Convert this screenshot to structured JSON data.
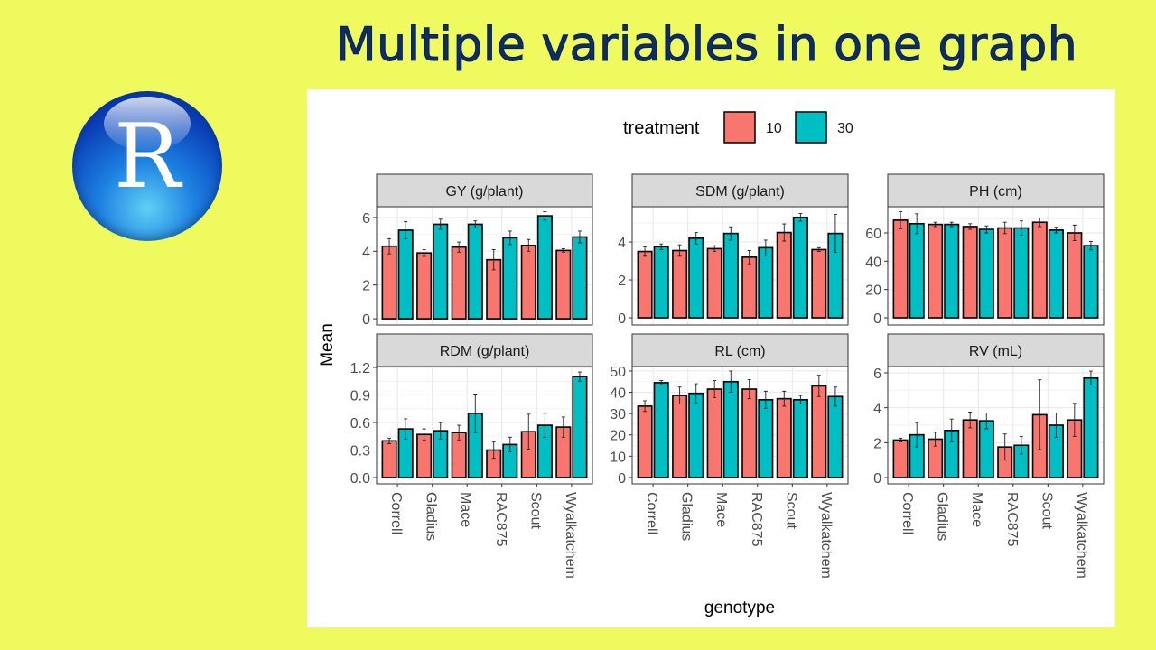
{
  "title": "Multiple variables in one graph",
  "logo": {
    "letter": "R"
  },
  "chart_data": {
    "type": "bar",
    "layout": "facet grid 2x3, free y scales",
    "categories": [
      "Correll",
      "Gladius",
      "Mace",
      "RAC875",
      "Scout",
      "Wyalkatchem"
    ],
    "xlabel": "genotype",
    "ylabel": "Mean",
    "legend": {
      "title": "treatment",
      "position": "top",
      "entries": [
        {
          "name": "10",
          "color": "#f8766d"
        },
        {
          "name": "30",
          "color": "#00bfc4"
        }
      ]
    },
    "grid": true,
    "error_bars": true,
    "panels": [
      {
        "label": "GY (g/plant)",
        "ylim": [
          -0.37,
          6.64
        ],
        "ticks": [
          "0",
          "2",
          "4",
          "6"
        ],
        "tick_values": [
          0,
          2,
          4,
          6
        ],
        "series": [
          {
            "name": "10",
            "values": [
              4.3,
              3.9,
              4.25,
              3.5,
              4.35,
              4.05
            ],
            "err": [
              0.45,
              0.2,
              0.3,
              0.6,
              0.35,
              0.1
            ]
          },
          {
            "name": "30",
            "values": [
              5.25,
              5.6,
              5.6,
              4.8,
              6.1,
              4.85
            ],
            "err": [
              0.5,
              0.3,
              0.2,
              0.4,
              0.25,
              0.35
            ]
          }
        ]
      },
      {
        "label": "SDM (g/plant)",
        "ylim": [
          -0.38,
          5.86
        ],
        "ticks": [
          "0",
          "2",
          "4"
        ],
        "tick_values": [
          0,
          2,
          4
        ],
        "series": [
          {
            "name": "10",
            "values": [
              3.5,
              3.55,
              3.65,
              3.2,
              4.5,
              3.6
            ],
            "err": [
              0.25,
              0.3,
              0.15,
              0.35,
              0.45,
              0.1
            ]
          },
          {
            "name": "30",
            "values": [
              3.75,
              4.2,
              4.45,
              3.7,
              5.3,
              4.45
            ],
            "err": [
              0.15,
              0.3,
              0.35,
              0.4,
              0.2,
              1.0
            ]
          }
        ]
      },
      {
        "label": "PH (cm)",
        "ylim": [
          -5.1,
          78.5
        ],
        "ticks": [
          "0",
          "20",
          "40",
          "60"
        ],
        "tick_values": [
          0,
          20,
          40,
          60
        ],
        "series": [
          {
            "name": "10",
            "values": [
              69,
              66,
              64.5,
              63.5,
              67.5,
              60
            ],
            "err": [
              6,
              1.5,
              2,
              4,
              3,
              5.5
            ]
          },
          {
            "name": "30",
            "values": [
              66.5,
              66,
              62.5,
              63.5,
              62,
              51
            ],
            "err": [
              7,
              1.5,
              2.5,
              5,
              2,
              3
            ]
          }
        ]
      },
      {
        "label": "RDM (g/plant)",
        "ylim": [
          -0.069,
          1.21
        ],
        "ticks": [
          "0.0",
          "0.3",
          "0.6",
          "0.9",
          "1.2"
        ],
        "tick_values": [
          0,
          0.3,
          0.6,
          0.9,
          1.2
        ],
        "series": [
          {
            "name": "10",
            "values": [
              0.4,
              0.47,
              0.49,
              0.3,
              0.5,
              0.55
            ],
            "err": [
              0.03,
              0.06,
              0.08,
              0.09,
              0.19,
              0.11
            ]
          },
          {
            "name": "30",
            "values": [
              0.53,
              0.51,
              0.7,
              0.36,
              0.57,
              1.1
            ],
            "err": [
              0.11,
              0.09,
              0.21,
              0.08,
              0.13,
              0.05
            ]
          }
        ]
      },
      {
        "label": "RL (cm)",
        "ylim": [
          -3,
          52.1
        ],
        "ticks": [
          "0",
          "10",
          "20",
          "30",
          "40",
          "50"
        ],
        "tick_values": [
          0,
          10,
          20,
          30,
          40,
          50
        ],
        "series": [
          {
            "name": "10",
            "values": [
              33.5,
              38.5,
              41.5,
              41.5,
              37,
              43
            ],
            "err": [
              2.5,
              4,
              4,
              4.5,
              3.5,
              5
            ]
          },
          {
            "name": "30",
            "values": [
              44.5,
              39.5,
              45,
              36.5,
              36.5,
              38
            ],
            "err": [
              1,
              4.5,
              5,
              4,
              2,
              4.5
            ]
          }
        ]
      },
      {
        "label": "RV (mL)",
        "ylim": [
          -0.36,
          6.36
        ],
        "ticks": [
          "0",
          "2",
          "4",
          "6"
        ],
        "tick_values": [
          0,
          2,
          4,
          6
        ],
        "series": [
          {
            "name": "10",
            "values": [
              2.15,
              2.2,
              3.3,
              1.75,
              3.6,
              3.3
            ],
            "err": [
              0.1,
              0.4,
              0.45,
              0.75,
              2.0,
              0.95
            ]
          },
          {
            "name": "30",
            "values": [
              2.45,
              2.7,
              3.25,
              1.85,
              3.0,
              5.7
            ],
            "err": [
              0.7,
              0.65,
              0.45,
              0.5,
              0.7,
              0.4
            ]
          }
        ]
      }
    ]
  }
}
